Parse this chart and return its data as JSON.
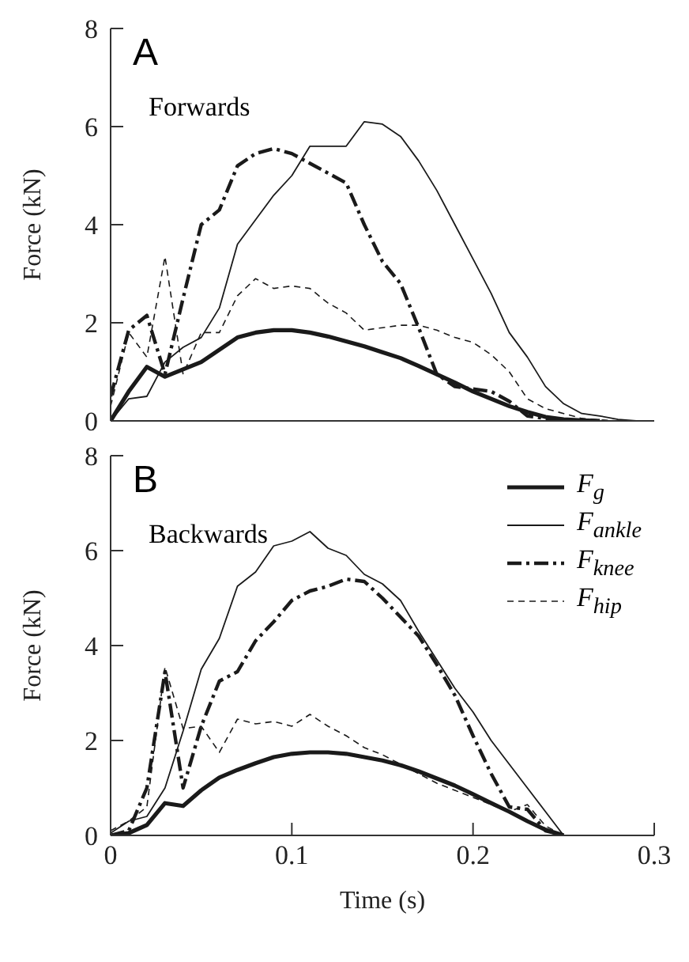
{
  "chart_data": [
    {
      "type": "line",
      "title": "A",
      "subtitle": "Forwards",
      "ylabel": "Force (kN)",
      "x": [
        0,
        0.01,
        0.02,
        0.03,
        0.04,
        0.05,
        0.06,
        0.07,
        0.08,
        0.09,
        0.1,
        0.11,
        0.12,
        0.13,
        0.14,
        0.15,
        0.16,
        0.17,
        0.18,
        0.19,
        0.2,
        0.21,
        0.22,
        0.23,
        0.24,
        0.25,
        0.26,
        0.27,
        0.28,
        0.29
      ],
      "xlim": [
        0,
        0.3
      ],
      "xticks": [
        0,
        0.1,
        0.2,
        0.3
      ],
      "ylim": [
        0,
        8
      ],
      "yticks": [
        0,
        2,
        4,
        6,
        8
      ],
      "tick_labels": "y",
      "legend": false,
      "grid": false,
      "marker": "none",
      "series": [
        {
          "color": "#1a1a1a",
          "line_style": "solid",
          "values": [
            0,
            0.6,
            1.1,
            0.9,
            1.05,
            1.2,
            1.45,
            1.7,
            1.8,
            1.85,
            1.85,
            1.8,
            1.72,
            1.62,
            1.52,
            1.4,
            1.28,
            1.12,
            0.95,
            0.78,
            0.6,
            0.45,
            0.3,
            0.18,
            0.08,
            0.03,
            0.01,
            0,
            null,
            null
          ]
        },
        {
          "color": "#1a1a1a",
          "line_style": "solid",
          "values": [
            0,
            0.45,
            0.5,
            1.2,
            1.5,
            1.7,
            2.3,
            3.6,
            4.1,
            4.6,
            5.0,
            5.6,
            5.6,
            5.6,
            6.1,
            6.05,
            5.8,
            5.3,
            4.7,
            4.0,
            3.3,
            2.6,
            1.8,
            1.3,
            0.7,
            0.35,
            0.15,
            0.1,
            0.03,
            0
          ]
        },
        {
          "color": "#1a1a1a",
          "line_style": "dashdot",
          "values": [
            0.5,
            1.85,
            2.15,
            0.95,
            2.5,
            4.0,
            4.3,
            5.2,
            5.45,
            5.55,
            5.45,
            5.25,
            5.05,
            4.85,
            4.0,
            3.25,
            2.8,
            1.9,
            0.95,
            0.7,
            0.65,
            0.6,
            0.4,
            0.1,
            0.05,
            0.02,
            0,
            null,
            null,
            null
          ]
        },
        {
          "color": "#1a1a1a",
          "line_style": "dashed",
          "values": [
            0.3,
            1.8,
            1.3,
            3.35,
            0.95,
            1.8,
            1.8,
            2.55,
            2.9,
            2.7,
            2.75,
            2.7,
            2.4,
            2.2,
            1.85,
            1.9,
            1.95,
            1.95,
            1.85,
            1.7,
            1.6,
            1.35,
            1.0,
            0.45,
            0.25,
            0.15,
            0.05,
            0.02,
            0,
            null
          ]
        }
      ]
    },
    {
      "type": "line",
      "title": "B",
      "subtitle": "Backwards",
      "xlabel": "Time (s)",
      "ylabel": "Force (kN)",
      "x": [
        0,
        0.01,
        0.02,
        0.03,
        0.04,
        0.05,
        0.06,
        0.07,
        0.08,
        0.09,
        0.1,
        0.11,
        0.12,
        0.13,
        0.14,
        0.15,
        0.16,
        0.17,
        0.18,
        0.19,
        0.2,
        0.21,
        0.22,
        0.23,
        0.24,
        0.25
      ],
      "xlim": [
        0,
        0.3
      ],
      "xticks": [
        0,
        0.1,
        0.2,
        0.3
      ],
      "ylim": [
        0,
        8
      ],
      "yticks": [
        0,
        2,
        4,
        6,
        8
      ],
      "legend": "top right",
      "grid": false,
      "marker": "none",
      "series": [
        {
          "name": "F$_{g}$",
          "color": "#1a1a1a",
          "line_style": "solid",
          "values": [
            0,
            0.05,
            0.22,
            0.68,
            0.62,
            0.95,
            1.22,
            1.38,
            1.52,
            1.65,
            1.72,
            1.75,
            1.75,
            1.72,
            1.65,
            1.58,
            1.48,
            1.35,
            1.2,
            1.05,
            0.87,
            0.68,
            0.5,
            0.3,
            0.12,
            0
          ]
        },
        {
          "name": "F$_{ankle}$",
          "color": "#1a1a1a",
          "line_style": "solid",
          "values": [
            0.05,
            0.3,
            0.4,
            1.0,
            2.2,
            3.5,
            4.15,
            5.25,
            5.55,
            6.1,
            6.2,
            6.4,
            6.05,
            5.9,
            5.5,
            5.3,
            4.95,
            4.3,
            3.7,
            3.1,
            2.6,
            2.0,
            1.5,
            1.0,
            0.5,
            0
          ]
        },
        {
          "name": "F$_{knee}$",
          "color": "#1a1a1a",
          "line_style": "dashdot",
          "values": [
            0,
            0.1,
            1.0,
            3.45,
            1.0,
            2.3,
            3.25,
            3.45,
            4.1,
            4.5,
            4.95,
            5.15,
            5.25,
            5.4,
            5.35,
            5.0,
            4.6,
            4.2,
            3.6,
            2.95,
            2.1,
            1.3,
            0.6,
            0.55,
            0.1,
            0
          ]
        },
        {
          "name": "F$_{hip}$",
          "color": "#1a1a1a",
          "line_style": "dashed",
          "values": [
            0.1,
            0.3,
            0.6,
            3.55,
            2.25,
            2.3,
            1.75,
            2.45,
            2.35,
            2.4,
            2.3,
            2.55,
            2.3,
            2.1,
            1.85,
            1.7,
            1.5,
            1.3,
            1.1,
            0.95,
            0.8,
            0.65,
            0.5,
            0.65,
            0.2,
            0
          ]
        }
      ]
    }
  ]
}
